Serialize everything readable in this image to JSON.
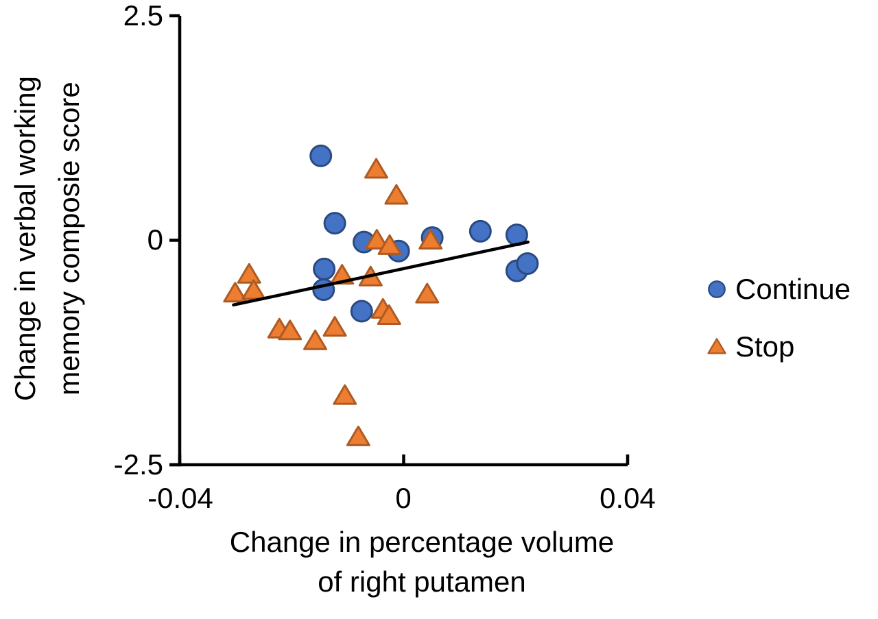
{
  "chart_data": {
    "type": "scatter",
    "title": "",
    "xlabel": "Change in percentage volume of right putamen",
    "xlabel_lines": [
      "Change in percentage volume",
      "of right putamen"
    ],
    "ylabel": "Change in verbal working memory composie score",
    "ylabel_lines": [
      "Change in verbal working",
      "memory composie score"
    ],
    "xlim": [
      -0.04,
      0.04
    ],
    "ylim": [
      -2.5,
      2.5
    ],
    "grid": false,
    "legend_position": "right-center",
    "axis_color": "#000000",
    "x_ticks": [
      {
        "value": -0.04,
        "label": "-0.04"
      },
      {
        "value": 0,
        "label": "0"
      },
      {
        "value": 0.04,
        "label": "0.04"
      }
    ],
    "y_ticks": [
      {
        "value": 2.5,
        "label": "2.5"
      },
      {
        "value": 0,
        "label": "0"
      },
      {
        "value": -2.5,
        "label": "-2.5"
      }
    ],
    "series": [
      {
        "name": "Continue",
        "marker": "circle",
        "color": "#4472C4",
        "edge_color": "#2B4A80",
        "points": [
          [
            -0.0148,
            0.94
          ],
          [
            -0.0123,
            0.19
          ],
          [
            -0.0071,
            -0.02
          ],
          [
            -0.0009,
            -0.12
          ],
          [
            0.0051,
            0.03
          ],
          [
            0.0137,
            0.1
          ],
          [
            0.0202,
            0.06
          ],
          [
            0.0202,
            -0.34
          ],
          [
            0.0221,
            -0.26
          ],
          [
            -0.0142,
            -0.32
          ],
          [
            -0.0143,
            -0.55
          ],
          [
            -0.0075,
            -0.79
          ]
        ]
      },
      {
        "name": "Stop",
        "marker": "triangle",
        "color": "#ED7D31",
        "edge_color": "#AE5A21",
        "points": [
          [
            -0.0049,
            0.79
          ],
          [
            -0.0013,
            0.5
          ],
          [
            -0.0048,
            0.0
          ],
          [
            -0.0025,
            -0.06
          ],
          [
            0.0048,
            0.0
          ],
          [
            0.0042,
            -0.6
          ],
          [
            -0.0276,
            -0.38
          ],
          [
            -0.0301,
            -0.59
          ],
          [
            -0.0268,
            -0.56
          ],
          [
            -0.011,
            -0.39
          ],
          [
            -0.0059,
            -0.41
          ],
          [
            -0.0037,
            -0.77
          ],
          [
            -0.0026,
            -0.84
          ],
          [
            -0.0222,
            -0.99
          ],
          [
            -0.0203,
            -1.01
          ],
          [
            -0.0158,
            -1.12
          ],
          [
            -0.0123,
            -0.97
          ],
          [
            -0.0105,
            -1.73
          ],
          [
            -0.0081,
            -2.19
          ]
        ]
      }
    ],
    "trend_line": {
      "color": "#000000",
      "x1": -0.0304,
      "y1": -0.72,
      "x2": 0.0222,
      "y2": -0.02
    }
  }
}
